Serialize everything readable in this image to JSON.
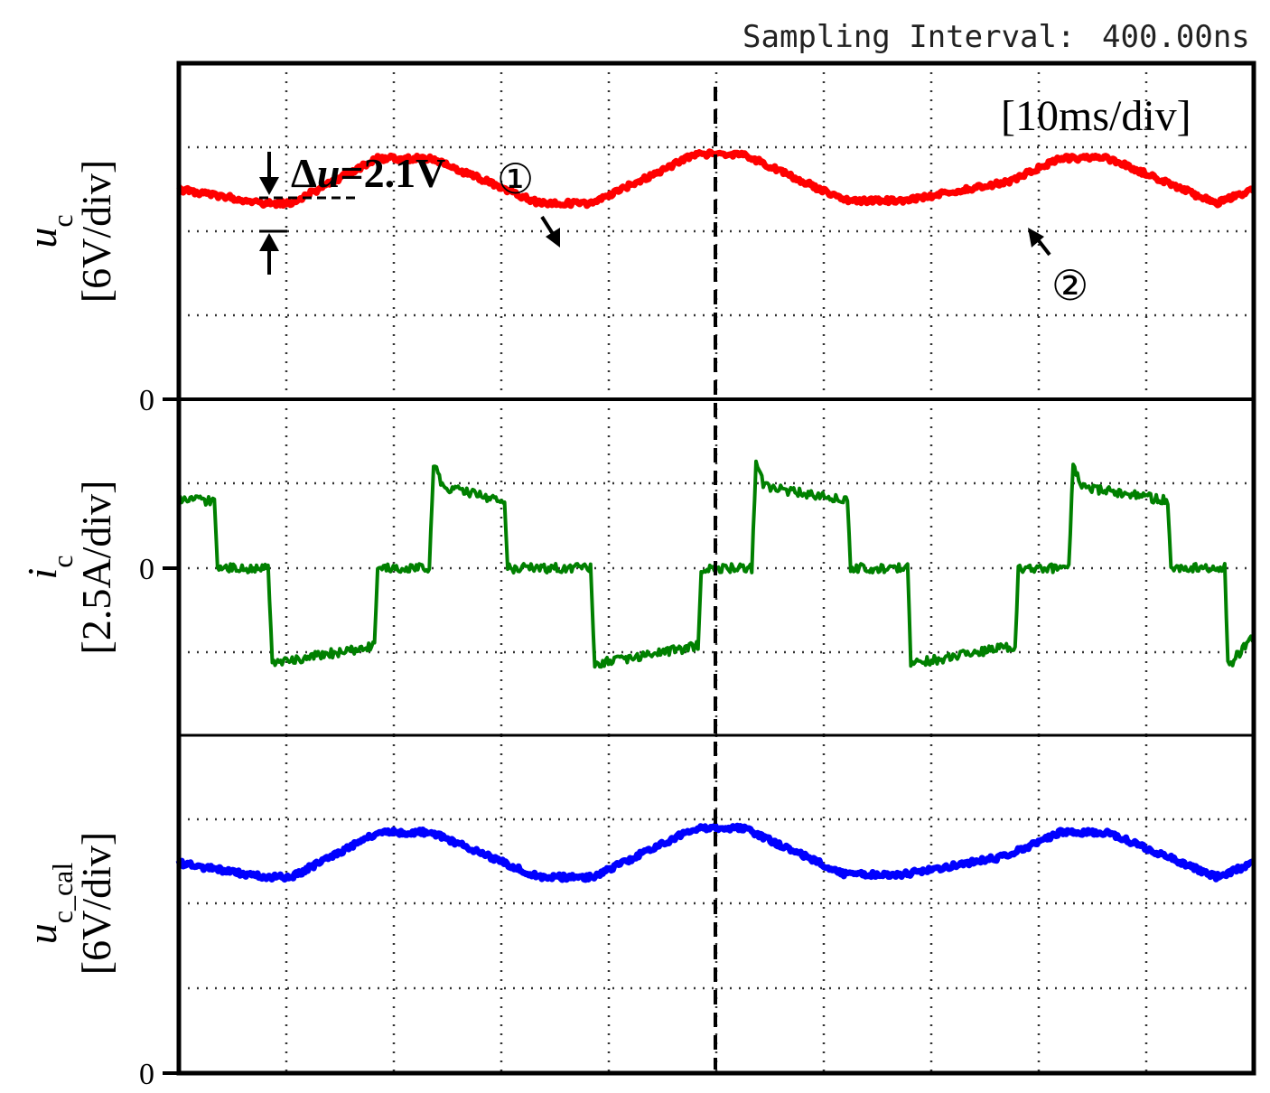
{
  "header": {
    "sampling_label": "Sampling Interval:",
    "sampling_value": "400.00ns",
    "time_scale": "[10ms/div]"
  },
  "panels": {
    "top": {
      "symbol": "u",
      "subscript": "c",
      "scale": "[6V/div]",
      "zero_label": "0"
    },
    "middle": {
      "symbol": "i",
      "subscript": "c",
      "scale": "[2.5A/div]",
      "zero_label": "0"
    },
    "bottom": {
      "symbol": "u",
      "subscript": "c_cal",
      "scale": "[6V/div]",
      "zero_label": "0"
    }
  },
  "annotations": {
    "delta_symbol": "Δ",
    "delta_var": "u",
    "delta_value": "=2.1V",
    "marker_1": "①",
    "marker_2": "②"
  },
  "colors": {
    "uc": "#ff0000",
    "ic": "#008000",
    "uc_cal": "#0000ff",
    "grid": "#333333",
    "frame": "#000000"
  },
  "chart_data": {
    "type": "line",
    "x_unit": "ms",
    "x_range": [
      0,
      100
    ],
    "cursor_x": 50,
    "series": [
      {
        "name": "uc",
        "unit": "V",
        "y_range": [
          0,
          24
        ],
        "points": [
          [
            0,
            15.0
          ],
          [
            8,
            14.0
          ],
          [
            10.5,
            14.0
          ],
          [
            18.5,
            17.2
          ],
          [
            23.5,
            17.2
          ],
          [
            33.5,
            14.0
          ],
          [
            38.5,
            14.0
          ],
          [
            48,
            17.5
          ],
          [
            52.5,
            17.5
          ],
          [
            62,
            14.2
          ],
          [
            67.5,
            14.2
          ],
          [
            77,
            15.5
          ],
          [
            82,
            17.2
          ],
          [
            86.5,
            17.2
          ],
          [
            96.5,
            14.0
          ],
          [
            100,
            15.0
          ]
        ]
      },
      {
        "name": "ic",
        "unit": "A",
        "y_range": [
          -5,
          5
        ],
        "points": [
          [
            0,
            2.0
          ],
          [
            3.3,
            2.0
          ],
          [
            3.6,
            0.0
          ],
          [
            8.3,
            0.0
          ],
          [
            8.7,
            -2.8
          ],
          [
            9.2,
            -2.8
          ],
          [
            18.2,
            -2.3
          ],
          [
            18.5,
            0.0
          ],
          [
            23.3,
            0.0
          ],
          [
            23.7,
            3.1
          ],
          [
            24.5,
            2.4
          ],
          [
            30.3,
            2.0
          ],
          [
            30.6,
            0.0
          ],
          [
            38.3,
            0.0
          ],
          [
            38.7,
            -2.8
          ],
          [
            39.3,
            -2.8
          ],
          [
            48.3,
            -2.3
          ],
          [
            48.6,
            0.0
          ],
          [
            53.3,
            0.0
          ],
          [
            53.7,
            3.1
          ],
          [
            54.5,
            2.4
          ],
          [
            62.2,
            2.0
          ],
          [
            62.5,
            0.0
          ],
          [
            67.8,
            0.0
          ],
          [
            68.1,
            -2.8
          ],
          [
            68.8,
            -2.8
          ],
          [
            77.8,
            -2.3
          ],
          [
            78.1,
            0.0
          ],
          [
            82.8,
            0.0
          ],
          [
            83.2,
            3.1
          ],
          [
            84.0,
            2.4
          ],
          [
            92.0,
            2.0
          ],
          [
            92.3,
            0.0
          ],
          [
            97.3,
            0.0
          ],
          [
            97.6,
            -2.8
          ],
          [
            97.9,
            -2.8
          ],
          [
            100,
            -2.0
          ]
        ]
      },
      {
        "name": "uc_cal",
        "unit": "V",
        "y_range": [
          0,
          24
        ],
        "points": [
          [
            0,
            15.0
          ],
          [
            8,
            14.0
          ],
          [
            10.5,
            14.0
          ],
          [
            18.5,
            17.2
          ],
          [
            23.5,
            17.2
          ],
          [
            33.5,
            14.0
          ],
          [
            38.5,
            14.0
          ],
          [
            48,
            17.5
          ],
          [
            52.5,
            17.5
          ],
          [
            62,
            14.2
          ],
          [
            67.5,
            14.2
          ],
          [
            77,
            15.5
          ],
          [
            82,
            17.2
          ],
          [
            86.5,
            17.2
          ],
          [
            96.5,
            14.0
          ],
          [
            100,
            15.0
          ]
        ]
      }
    ]
  }
}
